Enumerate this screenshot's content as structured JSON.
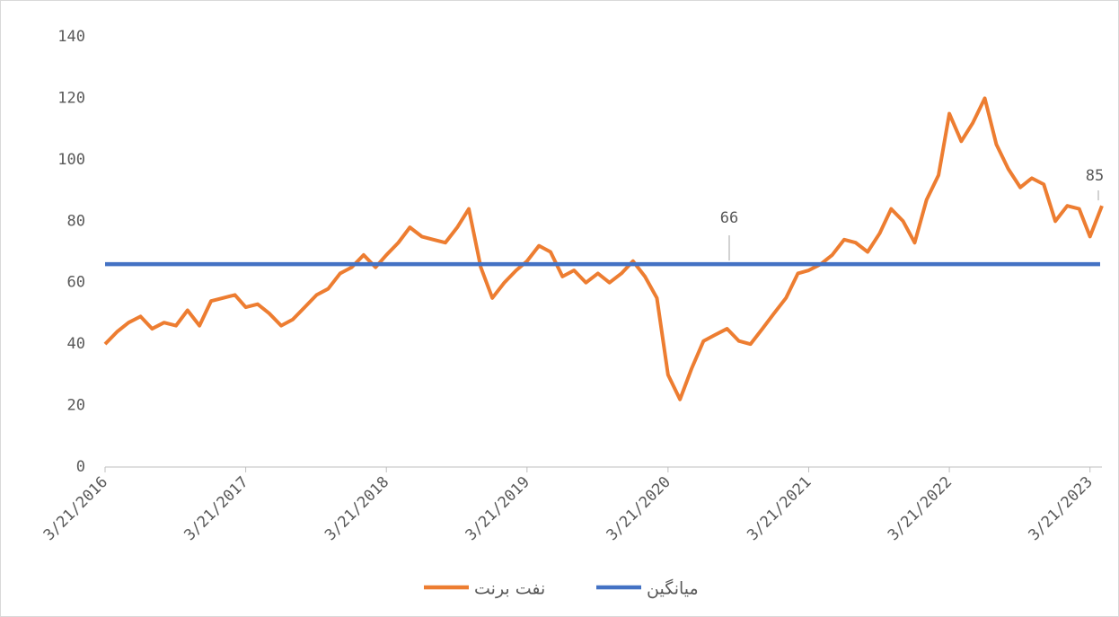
{
  "chart_data": {
    "type": "line",
    "x": [
      "3/21/2016",
      "4/21/2016",
      "5/21/2016",
      "6/21/2016",
      "7/21/2016",
      "8/21/2016",
      "9/21/2016",
      "10/21/2016",
      "11/21/2016",
      "12/21/2016",
      "1/21/2017",
      "2/21/2017",
      "3/21/2017",
      "4/21/2017",
      "5/21/2017",
      "6/21/2017",
      "7/21/2017",
      "8/21/2017",
      "9/21/2017",
      "10/21/2017",
      "11/21/2017",
      "12/21/2017",
      "1/21/2018",
      "2/21/2018",
      "3/21/2018",
      "4/21/2018",
      "5/21/2018",
      "6/21/2018",
      "7/21/2018",
      "8/21/2018",
      "9/21/2018",
      "10/21/2018",
      "11/21/2018",
      "12/21/2018",
      "1/21/2019",
      "2/21/2019",
      "3/21/2019",
      "4/21/2019",
      "5/21/2019",
      "6/21/2019",
      "7/21/2019",
      "8/21/2019",
      "9/21/2019",
      "10/21/2019",
      "11/21/2019",
      "12/21/2019",
      "1/21/2020",
      "2/21/2020",
      "3/21/2020",
      "4/21/2020",
      "5/21/2020",
      "6/21/2020",
      "7/21/2020",
      "8/21/2020",
      "9/21/2020",
      "10/21/2020",
      "11/21/2020",
      "12/21/2020",
      "1/21/2021",
      "2/21/2021",
      "3/21/2021",
      "4/21/2021",
      "5/21/2021",
      "6/21/2021",
      "7/21/2021",
      "8/21/2021",
      "9/21/2021",
      "10/21/2021",
      "11/21/2021",
      "12/21/2021",
      "1/21/2022",
      "2/21/2022",
      "3/21/2022",
      "4/21/2022",
      "5/21/2022",
      "6/21/2022",
      "7/21/2022",
      "8/21/2022",
      "9/21/2022",
      "10/21/2022",
      "11/21/2022",
      "12/21/2022",
      "1/21/2023",
      "2/21/2023",
      "3/21/2023",
      "4/21/2023"
    ],
    "series": [
      {
        "name": "نفت برنت",
        "color": "#ED7D31",
        "values": [
          40,
          44,
          47,
          49,
          45,
          47,
          46,
          51,
          46,
          54,
          55,
          56,
          52,
          53,
          50,
          46,
          48,
          52,
          56,
          58,
          63,
          65,
          69,
          65,
          69,
          73,
          78,
          75,
          74,
          73,
          78,
          84,
          65,
          55,
          60,
          64,
          67,
          72,
          70,
          62,
          64,
          60,
          63,
          60,
          63,
          67,
          62,
          55,
          30,
          22,
          32,
          41,
          43,
          45,
          41,
          40,
          45,
          50,
          55,
          63,
          64,
          66,
          69,
          74,
          73,
          70,
          76,
          84,
          80,
          73,
          87,
          95,
          115,
          106,
          112,
          120,
          105,
          97,
          91,
          94,
          92,
          80,
          85,
          84,
          75,
          85
        ]
      }
    ],
    "mean": {
      "name": "میانگین",
      "color": "#4472C4",
      "value": 66
    },
    "xlim": [
      "3/21/2016",
      "4/21/2023"
    ],
    "xticks": [
      "3/21/2016",
      "3/21/2017",
      "3/21/2018",
      "3/21/2019",
      "3/21/2020",
      "3/21/2021",
      "3/21/2022",
      "3/21/2023"
    ],
    "ylim": [
      0,
      140
    ],
    "yticks": [
      0,
      20,
      40,
      60,
      80,
      100,
      120,
      140
    ],
    "grid": false
  }
}
